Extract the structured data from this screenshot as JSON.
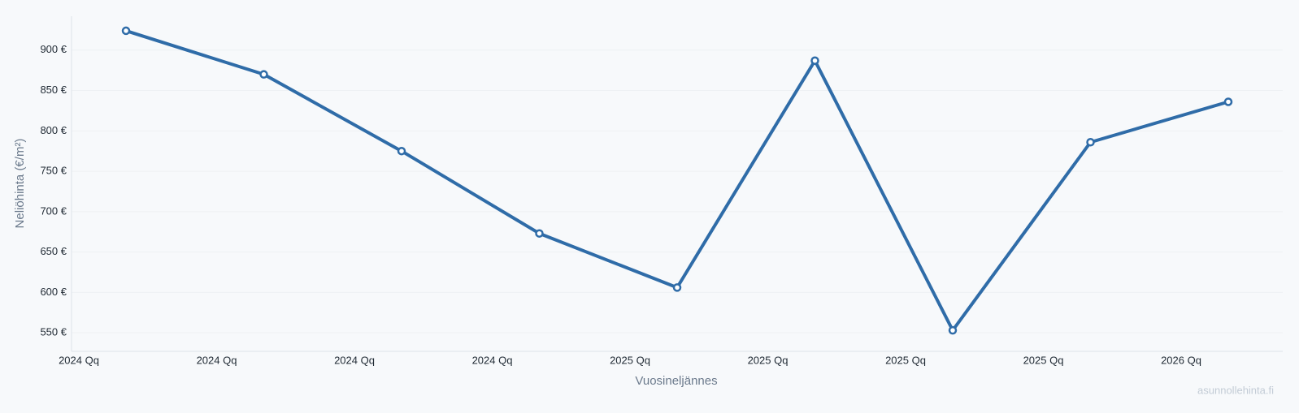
{
  "chart_data": {
    "type": "line",
    "x_label": "Vuosineljännes",
    "y_label": "Neliöhinta (€/m²)",
    "watermark": "asunnollehinta.fi",
    "categories": [
      "2024 Qq",
      "2024 Qq",
      "2024 Qq",
      "2024 Qq",
      "2025 Qq",
      "2025 Qq",
      "2025 Qq",
      "2025 Qq",
      "2026 Qq"
    ],
    "series": [
      {
        "color": "#2f6ca8",
        "values": [
          924,
          870,
          775,
          673,
          606,
          887,
          553,
          786,
          836
        ]
      }
    ],
    "ylim": [
      527,
      942
    ],
    "yticks": [
      {
        "value": 550,
        "label": "550 €"
      },
      {
        "value": 600,
        "label": "600 €"
      },
      {
        "value": 650,
        "label": "650 €"
      },
      {
        "value": 700,
        "label": "700 €"
      },
      {
        "value": 750,
        "label": "750 €"
      },
      {
        "value": 800,
        "label": "800 €"
      },
      {
        "value": 850,
        "label": "850 €"
      },
      {
        "value": 900,
        "label": "900 €"
      }
    ],
    "grid": true
  }
}
